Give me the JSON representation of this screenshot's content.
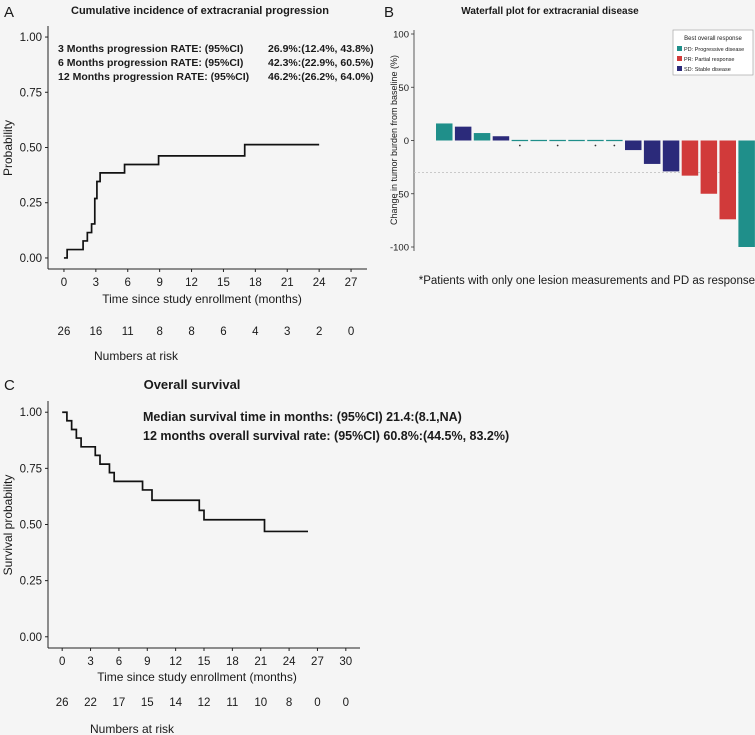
{
  "panels": {
    "A": {
      "letter": "A",
      "title": "Cumulative incidence of extracranial progression",
      "ylabel": "Probability",
      "xlabel": "Time since study enrollment (months)",
      "risk_label": "Numbers at risk",
      "xticks": [
        "0",
        "3",
        "6",
        "9",
        "12",
        "15",
        "18",
        "21",
        "24",
        "27"
      ],
      "yticks": [
        "0.00",
        "0.25",
        "0.50",
        "0.75",
        "1.00"
      ],
      "at_risk": [
        "26",
        "16",
        "11",
        "8",
        "8",
        "6",
        "4",
        "3",
        "2",
        "0"
      ],
      "rates": [
        {
          "label": "3 Months progression RATE: (95%CI)",
          "value": "26.9%:(12.4%, 43.8%)"
        },
        {
          "label": "6 Months progression RATE: (95%CI)",
          "value": "42.3%:(22.9%, 60.5%)"
        },
        {
          "label": "12 Months progression RATE: (95%CI)",
          "value": "46.2%:(26.2%, 64.0%)"
        }
      ]
    },
    "B": {
      "letter": "B",
      "title": "Waterfall plot for extracranial disease",
      "ylabel": "Change in tumor burden from baseline (%)",
      "yticks": [
        "-100",
        "-50",
        "0",
        "50",
        "100"
      ],
      "legend_title": "Best overall response",
      "legend": [
        {
          "key": "PD",
          "label": "PD: Progressive disease",
          "color": "#1f8f8a"
        },
        {
          "key": "PR",
          "label": "PR: Partial response",
          "color": "#d13a3a"
        },
        {
          "key": "SD",
          "label": "SD: Stable disease",
          "color": "#2b2a7a"
        }
      ],
      "footnote": "*Patients with only one lesion measurements and PD as response"
    },
    "C": {
      "letter": "C",
      "title": "Overall survival",
      "ylabel": "Survival probability",
      "xlabel": "Time since study enrollment (months)",
      "risk_label": "Numbers at risk",
      "xticks": [
        "0",
        "3",
        "6",
        "9",
        "12",
        "15",
        "18",
        "21",
        "24",
        "27",
        "30"
      ],
      "yticks": [
        "0.00",
        "0.25",
        "0.50",
        "0.75",
        "1.00"
      ],
      "at_risk": [
        "26",
        "22",
        "17",
        "15",
        "14",
        "12",
        "11",
        "10",
        "8",
        "0",
        "0"
      ],
      "median_text": "Median survival time in months: (95%CI) 21.4:(8.1,NA)",
      "rate_text": "12 months overall survival rate: (95%CI) 60.8%:(44.5%, 83.2%)"
    }
  },
  "chart_data": [
    {
      "type": "line",
      "step": true,
      "title": "Cumulative incidence of extracranial progression",
      "xlabel": "Time since study enrollment (months)",
      "ylabel": "Probability",
      "xlim": [
        -1.5,
        28.5
      ],
      "ylim": [
        -0.05,
        1.05
      ],
      "x": [
        0,
        0.3,
        1.8,
        2.2,
        2.6,
        2.9,
        3.1,
        3.4,
        4.0,
        5.7,
        8.9,
        11.9,
        17.0,
        24.0
      ],
      "y": [
        0,
        0.038,
        0.077,
        0.115,
        0.154,
        0.269,
        0.346,
        0.385,
        0.385,
        0.423,
        0.462,
        0.462,
        0.513,
        0.513
      ]
    },
    {
      "type": "bar",
      "title": "Waterfall plot for extracranial disease",
      "ylabel": "Change in tumor burden from baseline (%)",
      "ylim": [
        -100,
        100
      ],
      "values": [
        16,
        13,
        7,
        4,
        0,
        0,
        0,
        0,
        0,
        0,
        -9,
        -22,
        -29,
        -33,
        -50,
        -74,
        -100
      ],
      "responses": [
        "PD",
        "SD",
        "PD",
        "SD",
        "PD",
        "PD",
        "PD",
        "PD",
        "PD",
        "PD",
        "SD",
        "SD",
        "SD",
        "PR",
        "PR",
        "PR",
        "PD"
      ],
      "asterisk": [
        false,
        false,
        false,
        false,
        true,
        false,
        true,
        false,
        true,
        true,
        false,
        false,
        false,
        false,
        false,
        false,
        false
      ],
      "reference_line": -30
    },
    {
      "type": "line",
      "step": true,
      "title": "Overall survival",
      "xlabel": "Time since study enrollment (months)",
      "ylabel": "Survival probability",
      "xlim": [
        -1.5,
        31.5
      ],
      "ylim": [
        -0.05,
        1.05
      ],
      "x": [
        0,
        0.5,
        1.0,
        1.5,
        2.0,
        3.5,
        4.0,
        5.0,
        5.5,
        8.5,
        9.5,
        14.5,
        15.0,
        15.3,
        21.4,
        26.0
      ],
      "y": [
        1.0,
        0.962,
        0.923,
        0.885,
        0.846,
        0.808,
        0.769,
        0.731,
        0.692,
        0.654,
        0.608,
        0.563,
        0.521,
        0.521,
        0.469,
        0.469
      ]
    }
  ]
}
